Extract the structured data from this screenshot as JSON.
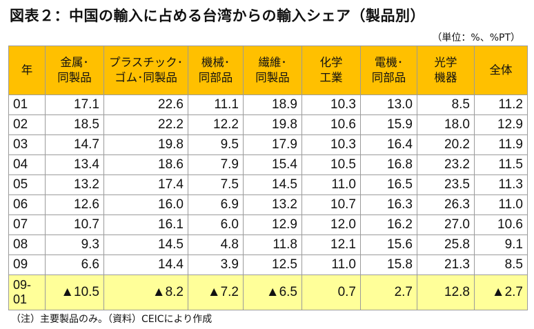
{
  "title": "図表２：中国の輸入に占める台湾からの輸入シェア（製品別）",
  "unit": "（単位：%、%PT）",
  "note": "（注）主要製品のみ。（資料）CEICにより作成",
  "header": {
    "col0": "年",
    "col1_l1": "金属･",
    "col1_l2": "同製品",
    "col2_l1": "プラスチック･",
    "col2_l2": "ゴム･同製品",
    "col3_l1": "機械･",
    "col3_l2": "同部品",
    "col4_l1": "繊維･",
    "col4_l2": "同製品",
    "col5_l1": "化学",
    "col5_l2": "工業",
    "col6_l1": "電機･",
    "col6_l2": "同部品",
    "col7_l1": "光学",
    "col7_l2": "機器",
    "col8": "全体"
  },
  "rows": [
    {
      "year": "01",
      "v": [
        "17.1",
        "22.6",
        "11.1",
        "18.9",
        "10.3",
        "13.0",
        "8.5",
        "11.2"
      ]
    },
    {
      "year": "02",
      "v": [
        "18.5",
        "22.2",
        "12.2",
        "19.8",
        "10.6",
        "15.9",
        "18.0",
        "12.9"
      ]
    },
    {
      "year": "03",
      "v": [
        "14.7",
        "19.8",
        "9.5",
        "17.9",
        "10.3",
        "16.4",
        "20.2",
        "11.9"
      ]
    },
    {
      "year": "04",
      "v": [
        "13.4",
        "18.6",
        "7.9",
        "15.4",
        "10.5",
        "16.8",
        "23.2",
        "11.5"
      ]
    },
    {
      "year": "05",
      "v": [
        "13.2",
        "17.4",
        "7.5",
        "14.5",
        "11.0",
        "16.5",
        "23.5",
        "11.3"
      ]
    },
    {
      "year": "06",
      "v": [
        "12.6",
        "16.0",
        "6.9",
        "13.2",
        "10.7",
        "16.3",
        "26.3",
        "11.0"
      ]
    },
    {
      "year": "07",
      "v": [
        "10.7",
        "16.1",
        "6.0",
        "12.9",
        "12.0",
        "16.2",
        "27.0",
        "10.6"
      ]
    },
    {
      "year": "08",
      "v": [
        "9.3",
        "14.5",
        "4.8",
        "11.8",
        "12.1",
        "15.6",
        "25.8",
        "9.1"
      ]
    },
    {
      "year": "09",
      "v": [
        "6.6",
        "14.4",
        "3.9",
        "12.5",
        "11.0",
        "15.8",
        "21.3",
        "8.5"
      ]
    }
  ],
  "change_row": {
    "year_l1": "09-",
    "year_l2": "01",
    "v": [
      "▲10.5",
      "▲8.2",
      "▲7.2",
      "▲6.5",
      "0.7",
      "2.7",
      "12.8",
      "▲2.7"
    ]
  },
  "colors": {
    "header_bg": "#ffc000",
    "change_row_bg": "#ffff99",
    "border": "#9a9a9a"
  }
}
